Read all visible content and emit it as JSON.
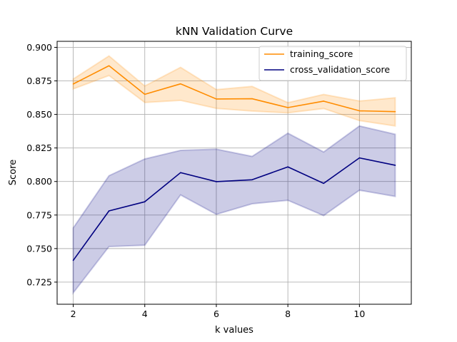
{
  "chart_data": {
    "type": "line",
    "title": "kNN Validation Curve",
    "xlabel": "k values",
    "ylabel": "Score",
    "xlim": [
      1.55,
      11.45
    ],
    "ylim": [
      0.7085,
      0.9045
    ],
    "xticks": [
      2,
      4,
      6,
      8,
      10
    ],
    "xtick_labels": [
      "2",
      "4",
      "6",
      "8",
      "10"
    ],
    "yticks": [
      0.725,
      0.75,
      0.775,
      0.8,
      0.825,
      0.85,
      0.875,
      0.9
    ],
    "ytick_labels": [
      "0.725",
      "0.750",
      "0.775",
      "0.800",
      "0.825",
      "0.850",
      "0.875",
      "0.900"
    ],
    "grid": true,
    "legend_position": "upper right",
    "x": [
      2,
      3,
      4,
      5,
      6,
      7,
      8,
      9,
      10,
      11
    ],
    "series": [
      {
        "name": "training_score",
        "color": "#ff8c00",
        "values": [
          0.8727,
          0.8863,
          0.865,
          0.8728,
          0.8615,
          0.8617,
          0.8551,
          0.8599,
          0.8527,
          0.8521
        ],
        "band_upper": [
          0.8764,
          0.8936,
          0.8712,
          0.8851,
          0.8685,
          0.8709,
          0.8588,
          0.8649,
          0.86,
          0.8624
        ],
        "band_lower": [
          0.869,
          0.879,
          0.8589,
          0.8605,
          0.8545,
          0.8525,
          0.8512,
          0.8544,
          0.8454,
          0.8414
        ]
      },
      {
        "name": "cross_validation_score",
        "color": "#000080",
        "values": [
          0.7412,
          0.7781,
          0.7849,
          0.8066,
          0.7999,
          0.8013,
          0.8109,
          0.7986,
          0.8176,
          0.8121
        ],
        "band_upper": [
          0.7654,
          0.8043,
          0.8168,
          0.8232,
          0.8241,
          0.8187,
          0.836,
          0.822,
          0.8414,
          0.8352
        ],
        "band_lower": [
          0.717,
          0.7515,
          0.7525,
          0.79,
          0.7755,
          0.7834,
          0.786,
          0.7746,
          0.7935,
          0.7889
        ]
      }
    ]
  }
}
